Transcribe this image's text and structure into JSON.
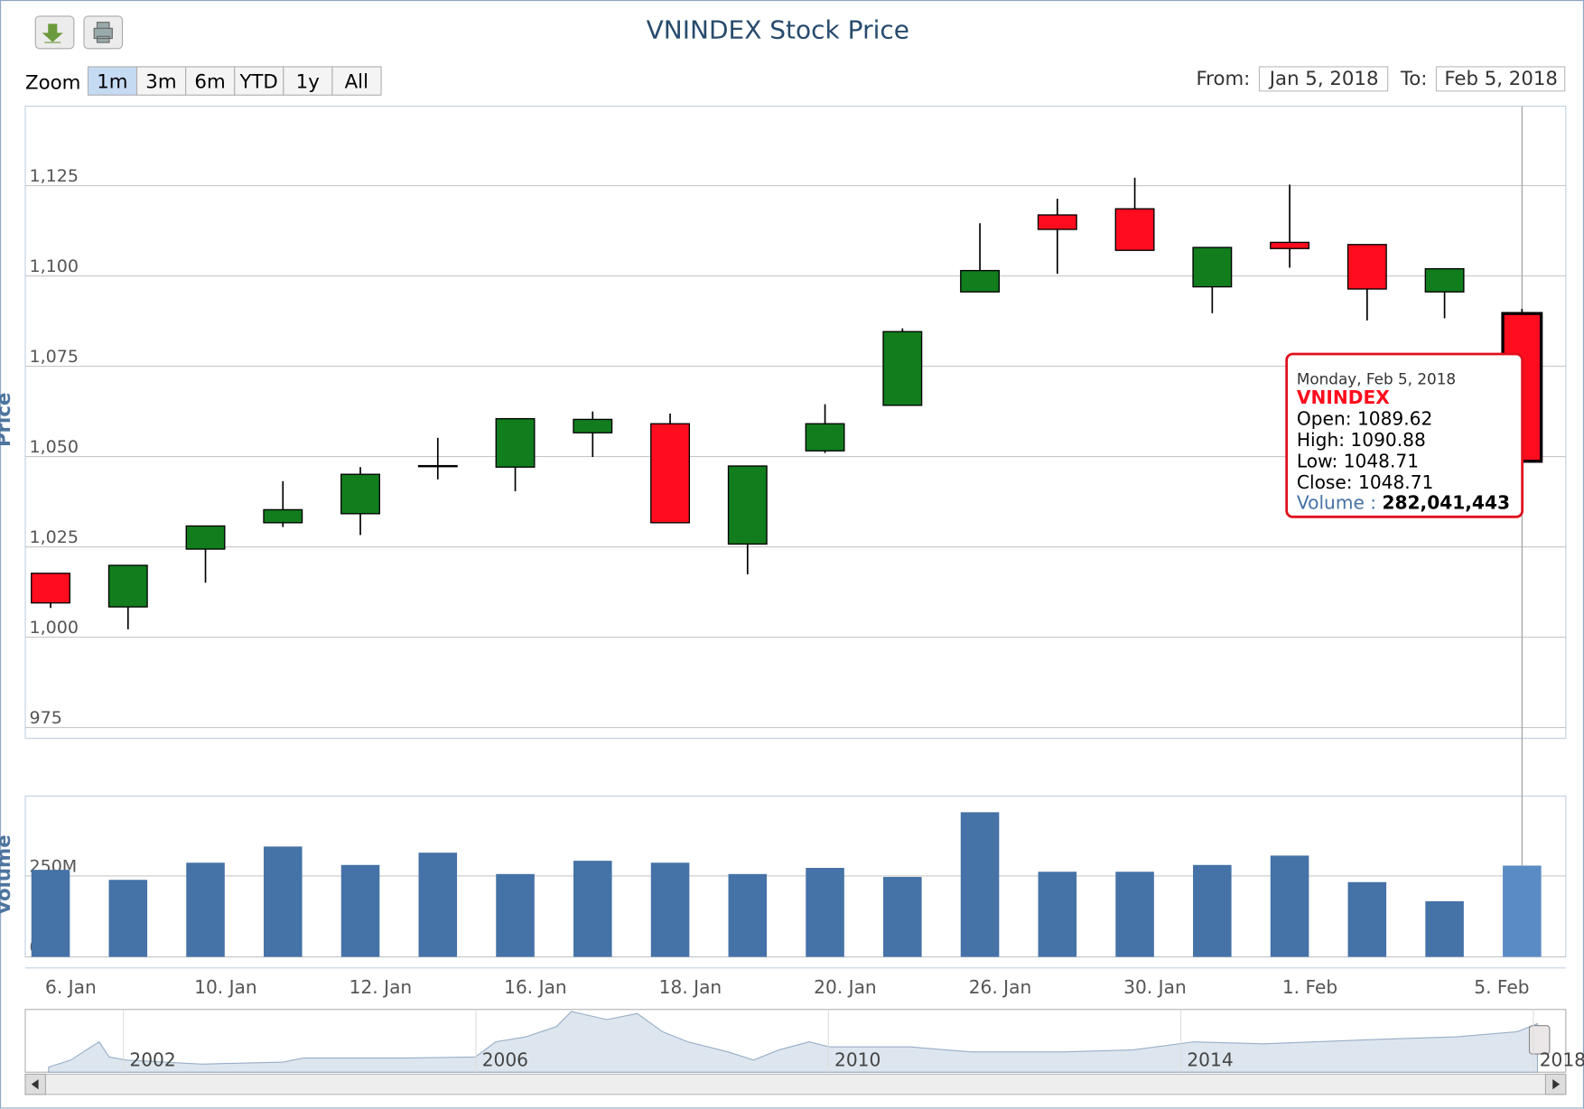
{
  "chart_data": {
    "type": "candlestick",
    "title": "VNINDEX Stock Price",
    "y_title": "Price",
    "range_selector": {
      "zoom_label": "Zoom",
      "buttons": [
        "1m",
        "3m",
        "6m",
        "YTD",
        "1y",
        "All"
      ],
      "selected": "1m",
      "from_label": "From:",
      "from": "Jan 5, 2018",
      "to_label": "To:",
      "to": "Feb 5, 2018"
    },
    "categories": [
      "6. Jan",
      null,
      "10. Jan",
      null,
      "12. Jan",
      null,
      "16. Jan",
      null,
      "18. Jan",
      null,
      "20. Jan",
      null,
      "26. Jan",
      null,
      "30. Jan",
      null,
      "1. Feb",
      null,
      null,
      "5. Feb"
    ],
    "series": [
      {
        "name": "VNINDEX",
        "up_color": "#117d1d",
        "down_color": "#ff0d1e",
        "open": [
          1017.7,
          1008.4,
          1024.4,
          1031.7,
          1034.2,
          1047.4,
          1047.1,
          1056.6,
          1059.1,
          1025.8,
          1051.6,
          1064.2,
          1095.6,
          1116.9,
          1118.6,
          1097.0,
          1109.3,
          1108.7,
          1095.6,
          1089.62
        ],
        "high": [
          1017.7,
          1019.9,
          1030.8,
          1043.2,
          1047.1,
          1055.2,
          1060.5,
          1062.5,
          1061.9,
          1047.4,
          1064.5,
          1085.5,
          1114.6,
          1121.4,
          1127.2,
          1107.9,
          1125.3,
          1108.7,
          1102.0,
          1090.88
        ],
        "low": [
          1008.1,
          1002.2,
          1015.1,
          1030.5,
          1028.3,
          1043.7,
          1040.4,
          1049.9,
          1031.7,
          1017.4,
          1051.0,
          1064.2,
          1095.6,
          1100.6,
          1107.1,
          1089.7,
          1102.3,
          1087.7,
          1088.3,
          1048.71
        ],
        "close": [
          1009.5,
          1019.9,
          1030.8,
          1035.3,
          1045.1,
          1047.5,
          1060.5,
          1060.3,
          1031.7,
          1047.4,
          1059.1,
          1084.6,
          1101.5,
          1112.9,
          1107.1,
          1107.9,
          1107.6,
          1096.4,
          1102.0,
          1048.71
        ]
      }
    ],
    "ylim": [
      972,
      1147
    ],
    "yticks": [
      {
        "value": 975,
        "label": "975"
      },
      {
        "value": 1000,
        "label": "1,000"
      },
      {
        "value": 1025,
        "label": "1,025"
      },
      {
        "value": 1050,
        "label": "1,050"
      },
      {
        "value": 1075,
        "label": "1,075"
      },
      {
        "value": 1100,
        "label": "1,100"
      },
      {
        "value": 1125,
        "label": "1,125"
      }
    ],
    "grid": true,
    "volume": {
      "name": "Volume",
      "color": "#4572a7",
      "hover_color": "#5b8bc4",
      "values": [
        269000000,
        238000000,
        291000000,
        341000000,
        284000000,
        322000000,
        256000000,
        297000000,
        291000000,
        256000000,
        275000000,
        247000000,
        447000000,
        263000000,
        263000000,
        284000000,
        313000000,
        231000000,
        172000000,
        282041443
      ],
      "value_labels": [
        null,
        null,
        null,
        null,
        null,
        null,
        null,
        null,
        null,
        null,
        null,
        null,
        null,
        null,
        null,
        null,
        null,
        null,
        null,
        "282,041,443"
      ],
      "ylim": [
        0,
        497000000
      ],
      "yticks": [
        {
          "value": 0,
          "label": "0M"
        },
        {
          "value": 250000000,
          "label": "250M"
        }
      ]
    },
    "navigator_labels": [
      "2002",
      "2006",
      "2010",
      "2014",
      "2018"
    ],
    "tooltip": {
      "index": 19,
      "date": "Monday, Feb 5, 2018",
      "fields": [
        "Open: ",
        "High: ",
        "Low: ",
        "Close: "
      ],
      "volume_label": "Volume : "
    }
  }
}
